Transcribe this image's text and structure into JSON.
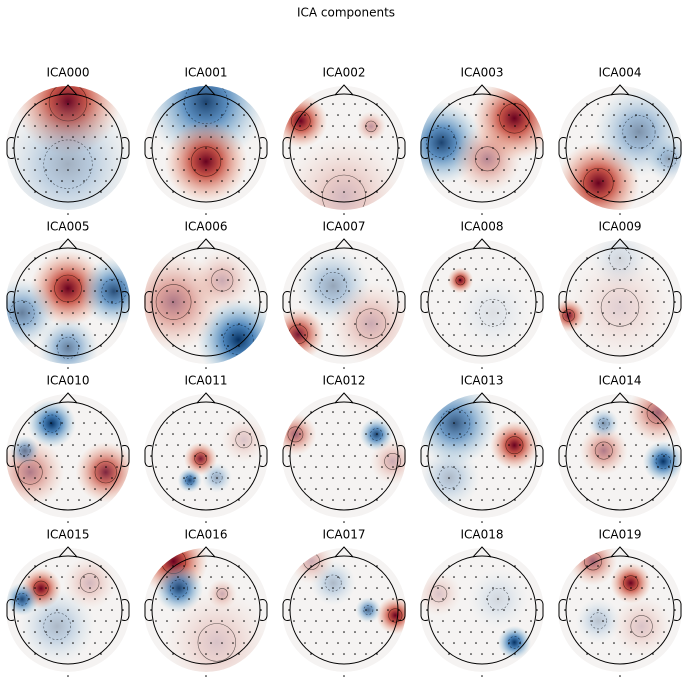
{
  "title": "ICA components",
  "components": [
    "ICA000",
    "ICA001",
    "ICA002",
    "ICA003",
    "ICA004",
    "ICA005",
    "ICA006",
    "ICA007",
    "ICA008",
    "ICA009",
    "ICA010",
    "ICA011",
    "ICA012",
    "ICA013",
    "ICA014",
    "ICA015",
    "ICA016",
    "ICA017",
    "ICA018",
    "ICA019"
  ]
}
